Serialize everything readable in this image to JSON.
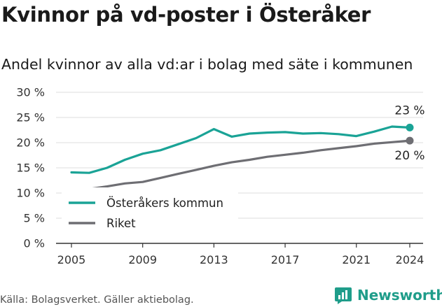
{
  "title": "Kvinnor på vd-poster i Österåker",
  "subtitle": "Andel kvinnor av alla vd:ar i bolag med säte i kommunen",
  "source": "Källa: Bolagsverket. Gäller aktiebolag.",
  "brand": {
    "name": "Newsworthy",
    "icon": "newsworthy-logo-icon",
    "color": "#1f9d8a"
  },
  "chart_data": {
    "type": "line",
    "title": "Kvinnor på vd-poster i Österåker",
    "subtitle": "Andel kvinnor av alla vd:ar i bolag med säte i kommunen",
    "x": [
      2005,
      2006,
      2007,
      2008,
      2009,
      2010,
      2011,
      2012,
      2013,
      2014,
      2015,
      2016,
      2017,
      2018,
      2019,
      2020,
      2021,
      2022,
      2023,
      2024
    ],
    "x_ticks": [
      2005,
      2009,
      2013,
      2017,
      2021,
      2024
    ],
    "y_ticks": [
      {
        "value": 0,
        "label": "0 %"
      },
      {
        "value": 5,
        "label": "5 %"
      },
      {
        "value": 10,
        "label": "10 %"
      },
      {
        "value": 15,
        "label": "15 %"
      },
      {
        "value": 20,
        "label": "20 %"
      },
      {
        "value": 25,
        "label": "25 %"
      },
      {
        "value": 30,
        "label": "30 %"
      }
    ],
    "ylim": [
      0,
      30
    ],
    "xlim": [
      2005,
      2024
    ],
    "grid": "horizontal",
    "legend_position": "bottom-left",
    "series": [
      {
        "name": "Österåkers kommun",
        "color": "#1aa396",
        "values": [
          14.1,
          14.0,
          15.0,
          16.6,
          17.8,
          18.5,
          19.7,
          20.9,
          22.7,
          21.2,
          21.8,
          22.0,
          22.1,
          21.8,
          21.9,
          21.7,
          21.3,
          22.2,
          23.2,
          23.0
        ],
        "end_label": "23 %",
        "end_label_position": "above"
      },
      {
        "name": "Riket",
        "color": "#6e6e73",
        "values": [
          10.4,
          10.8,
          11.3,
          11.9,
          12.2,
          13.0,
          13.8,
          14.6,
          15.4,
          16.1,
          16.6,
          17.2,
          17.6,
          18.0,
          18.5,
          18.9,
          19.3,
          19.8,
          20.1,
          20.4
        ],
        "end_label": "20 %",
        "end_label_position": "below"
      }
    ]
  }
}
